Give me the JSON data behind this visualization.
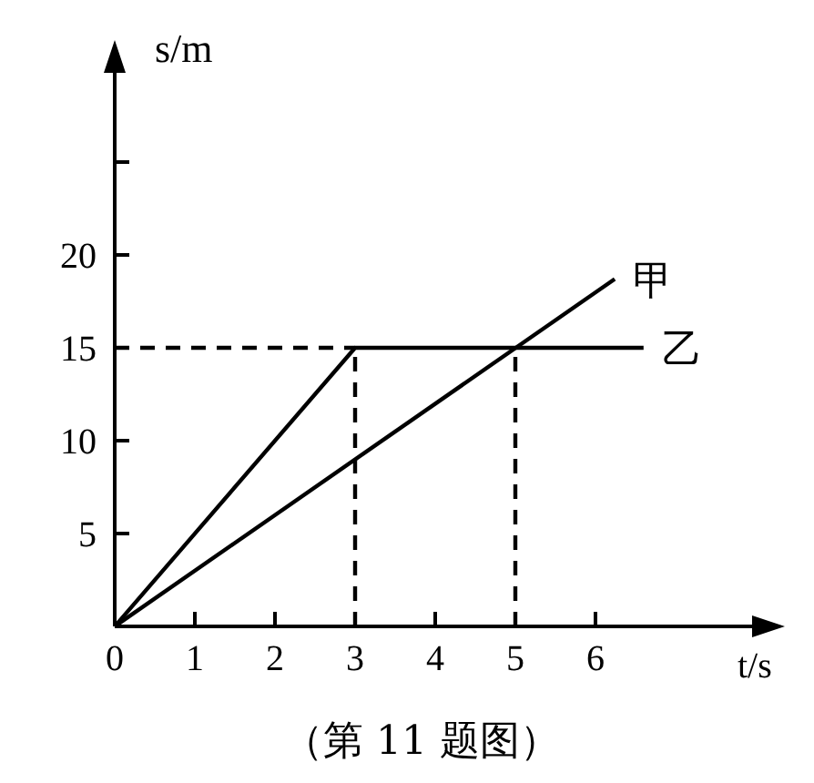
{
  "chart_data": {
    "type": "line",
    "xlabel": "t/s",
    "ylabel": "s/m",
    "xlim": [
      0,
      8
    ],
    "ylim": [
      0,
      30
    ],
    "xticks": [
      0,
      1,
      2,
      3,
      4,
      5,
      6
    ],
    "yticks": [
      5,
      10,
      15,
      20,
      {
        "value": 25,
        "label": null
      }
    ],
    "grid": false,
    "legend": false,
    "annotations": [
      "（第 11 题图）"
    ],
    "series": [
      {
        "name": "甲",
        "type": "line",
        "color": "#000000",
        "x": [
          0,
          6.24
        ],
        "values": [
          0,
          18.7
        ]
      },
      {
        "name": "乙",
        "type": "line",
        "color": "#000000",
        "x": [
          0,
          3,
          6.6
        ],
        "values": [
          0,
          15,
          15
        ]
      },
      {
        "type": "line",
        "color": "#000000",
        "line_style": "dashed",
        "x": [
          0,
          3
        ],
        "values": [
          15,
          15
        ]
      },
      {
        "type": "line",
        "color": "#000000",
        "line_style": "dashed",
        "x": [
          3,
          3
        ],
        "values": [
          0,
          15
        ]
      },
      {
        "type": "line",
        "color": "#000000",
        "line_style": "dashed",
        "x": [
          5,
          5
        ],
        "values": [
          0,
          15
        ]
      }
    ]
  }
}
